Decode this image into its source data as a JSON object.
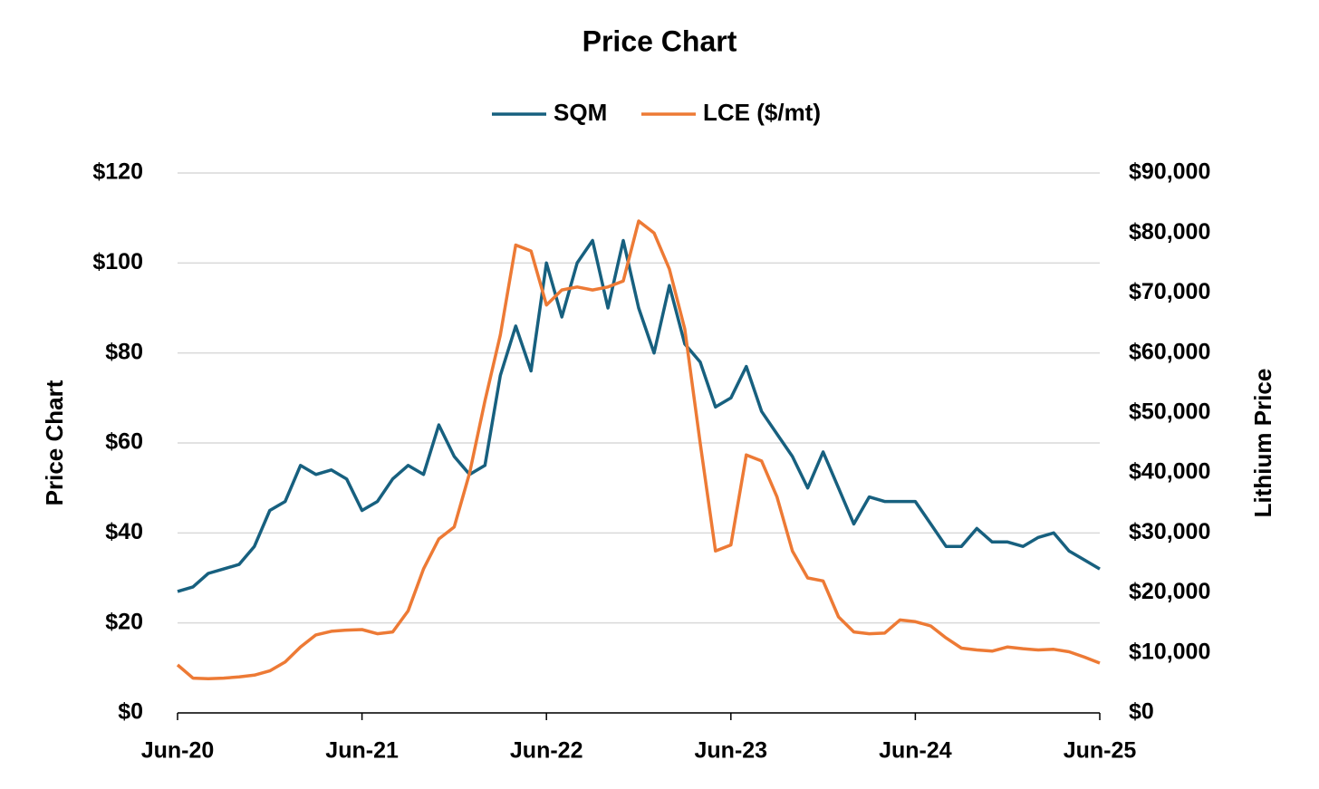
{
  "chart_data": {
    "type": "line",
    "title": "Price Chart",
    "ylabel": "Price Chart",
    "y2label": "Lithium Price",
    "legend": "top",
    "grid": true,
    "categories": [
      "Jun-20",
      null,
      null,
      null,
      null,
      null,
      null,
      null,
      null,
      null,
      null,
      null,
      "Jun-21",
      null,
      null,
      null,
      null,
      null,
      null,
      null,
      null,
      null,
      null,
      null,
      "Jun-22",
      null,
      null,
      null,
      null,
      null,
      null,
      null,
      null,
      null,
      null,
      null,
      "Jun-23",
      null,
      null,
      null,
      null,
      null,
      null,
      null,
      null,
      null,
      null,
      null,
      "Jun-24",
      null,
      null,
      null,
      null,
      null,
      null,
      null,
      null,
      null,
      null,
      null,
      "Jun-25"
    ],
    "ylim": [
      0,
      120
    ],
    "yticks": [
      {
        "value": 0,
        "label": "$0"
      },
      {
        "value": 20,
        "label": "$20"
      },
      {
        "value": 40,
        "label": "$40"
      },
      {
        "value": 60,
        "label": "$60"
      },
      {
        "value": 80,
        "label": "$80"
      },
      {
        "value": 100,
        "label": "$100"
      },
      {
        "value": 120,
        "label": "$120"
      }
    ],
    "y2lim": [
      0,
      90000
    ],
    "y2ticks": [
      {
        "value": 0,
        "label": "$0"
      },
      {
        "value": 10000,
        "label": "$10,000"
      },
      {
        "value": 20000,
        "label": "$20,000"
      },
      {
        "value": 30000,
        "label": "$30,000"
      },
      {
        "value": 40000,
        "label": "$40,000"
      },
      {
        "value": 50000,
        "label": "$50,000"
      },
      {
        "value": 60000,
        "label": "$60,000"
      },
      {
        "value": 70000,
        "label": "$70,000"
      },
      {
        "value": 80000,
        "label": "$80,000"
      },
      {
        "value": 90000,
        "label": "$90,000"
      }
    ],
    "series": [
      {
        "name": "SQM",
        "color": "#17607f",
        "axis": "y",
        "values": [
          27,
          28,
          31,
          32,
          33,
          37,
          45,
          47,
          55,
          53,
          54,
          52,
          45,
          47,
          52,
          55,
          53,
          64,
          57,
          53,
          55,
          75,
          86,
          76,
          100,
          88,
          100,
          105,
          90,
          105,
          90,
          80,
          95,
          82,
          78,
          68,
          70,
          77,
          67,
          62,
          57,
          50,
          58,
          50,
          42,
          48,
          47,
          47,
          47,
          42,
          37,
          37,
          41,
          38,
          38,
          37,
          39,
          40,
          36,
          34,
          32
        ]
      },
      {
        "name": "LCE ($/mt)",
        "color": "#ed7a35",
        "axis": "y2",
        "values": [
          8000,
          5800,
          5700,
          5800,
          6000,
          6300,
          7000,
          8500,
          11000,
          13000,
          13600,
          13800,
          13900,
          13200,
          13500,
          17000,
          24000,
          29000,
          31000,
          40000,
          52000,
          63000,
          78000,
          77000,
          68000,
          70500,
          71000,
          70500,
          71000,
          72000,
          82000,
          80000,
          74000,
          64000,
          45000,
          27000,
          28000,
          43000,
          42000,
          36000,
          27000,
          22500,
          22000,
          16000,
          13500,
          13200,
          13300,
          15500,
          15200,
          14500,
          12500,
          10800,
          10500,
          10300,
          11000,
          10700,
          10500,
          10600,
          10200,
          9300,
          8300
        ]
      }
    ]
  }
}
